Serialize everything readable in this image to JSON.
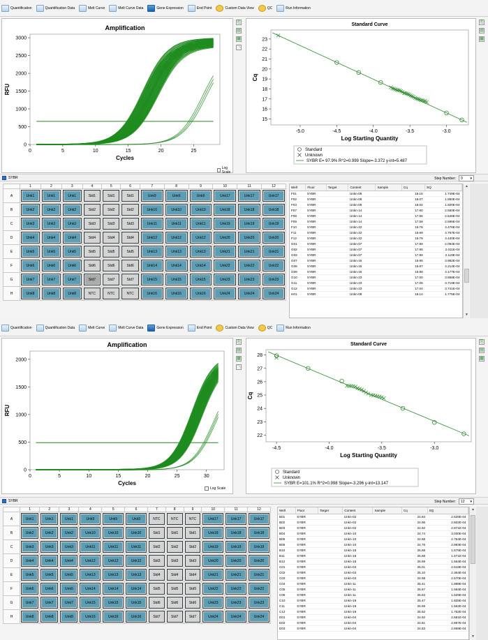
{
  "tabs": [
    {
      "label": "Quantification",
      "icon": "amplification-icon"
    },
    {
      "label": "Quantification Data",
      "icon": "quant-data-icon"
    },
    {
      "label": "Melt Curve",
      "icon": "melt-curve-icon"
    },
    {
      "label": "Melt Curve Data",
      "icon": "melt-data-icon"
    },
    {
      "label": "Gene Expression",
      "icon": "gene-expression-icon"
    },
    {
      "label": "End Point",
      "icon": "end-point-icon"
    },
    {
      "label": "Custom Data View",
      "icon": "custom-view-icon"
    },
    {
      "label": "QC",
      "icon": "qc-icon"
    },
    {
      "label": "Run Information",
      "icon": "run-info-icon"
    }
  ],
  "log_scale_label": "Log Scale",
  "fluor_label": "SYBR",
  "step_number_label": "Step Number:",
  "legend_labels": {
    "standard": "Standard",
    "unknown": "Unknown"
  },
  "column_headers": [
    "1",
    "2",
    "3",
    "4",
    "5",
    "6",
    "7",
    "8",
    "9",
    "10",
    "11",
    "12"
  ],
  "row_headers": [
    "A",
    "B",
    "C",
    "D",
    "E",
    "F",
    "G",
    "H"
  ],
  "table_headers": [
    "Well",
    "Fluor",
    "Target",
    "Content",
    "Sample",
    "Cq",
    "SQ"
  ],
  "panels": [
    {
      "step_number": "9",
      "plate": [
        [
          "Unk1",
          "Unk1",
          "Unk1",
          "Std1",
          "Std1",
          "Std1",
          "Unk9",
          "Unk9",
          "Unk9",
          "Unk17",
          "Unk17",
          "Unk17"
        ],
        [
          "Unk2",
          "Unk2",
          "Unk2",
          "Std2",
          "Std2",
          "Std2",
          "Unk10",
          "Unk10",
          "Unk10",
          "Unk18",
          "Unk18",
          "Unk18"
        ],
        [
          "Unk3",
          "Unk3",
          "Unk3",
          "Std3",
          "Std3",
          "Std3",
          "Unk11",
          "Unk11",
          "Unk11",
          "Unk19",
          "Unk19",
          "Unk19"
        ],
        [
          "Unk4",
          "Unk4",
          "Unk4",
          "Std4",
          "Std4",
          "Std4",
          "Unk12",
          "Unk12",
          "Unk12",
          "Unk20",
          "Unk20",
          "Unk20"
        ],
        [
          "Unk5",
          "Unk5",
          "Unk5",
          "Std5",
          "Std5",
          "Std5",
          "Unk13",
          "Unk13",
          "Unk13",
          "Unk21",
          "Unk21",
          "Unk21"
        ],
        [
          "Unk6",
          "Unk6",
          "Unk6",
          "Std6",
          "Std6",
          "Std6",
          "Unk14",
          "Unk14",
          "Unk14",
          "Unk22",
          "Unk22",
          "Unk22"
        ],
        [
          "Unk7",
          "Unk7",
          "Unk7",
          "Std7",
          "Std7",
          "Std7",
          "Unk15",
          "Unk15",
          "Unk15",
          "Unk23",
          "Unk23",
          "Unk23"
        ],
        [
          "Unk8",
          "Unk8",
          "Unk8",
          "NTC",
          "NTC",
          "NTC",
          "Unk16",
          "Unk16",
          "Unk16",
          "Unk24",
          "Unk24",
          "Unk24"
        ]
      ],
      "selected_well": "G4",
      "rows": [
        [
          "F01",
          "SYBR",
          "",
          "Unkn-06",
          "",
          "18.16",
          "1.749E-04"
        ],
        [
          "F02",
          "SYBR",
          "",
          "Unkn-06",
          "",
          "18.07",
          "1.850E-04"
        ],
        [
          "F03",
          "SYBR",
          "",
          "Unkn-06",
          "",
          "18.02",
          "1.920E-04"
        ],
        [
          "F07",
          "SYBR",
          "",
          "Unkn-14",
          "",
          "17.60",
          "2.560E-04"
        ],
        [
          "F08",
          "SYBR",
          "",
          "Unkn-14",
          "",
          "17.55",
          "2.646E-04"
        ],
        [
          "F09",
          "SYBR",
          "",
          "Unkn-14",
          "",
          "17.58",
          "2.595E-04"
        ],
        [
          "F10",
          "SYBR",
          "",
          "Unkn-22",
          "",
          "16.78",
          "4.476E-04"
        ],
        [
          "F11",
          "SYBR",
          "",
          "Unkn-22",
          "",
          "16.69",
          "4.767E-04"
        ],
        [
          "F12",
          "SYBR",
          "",
          "Unkn-22",
          "",
          "16.79",
          "4.440E-04"
        ],
        [
          "G01",
          "SYBR",
          "",
          "Unkn-07",
          "",
          "17.89",
          "2.094E-04"
        ],
        [
          "G02",
          "SYBR",
          "",
          "Unkn-07",
          "",
          "17.95",
          "2.011E-04"
        ],
        [
          "G03",
          "SYBR",
          "",
          "Unkn-07",
          "",
          "17.89",
          "2.119E-04"
        ],
        [
          "G07",
          "SYBR",
          "",
          "Unkn-15",
          "",
          "16.95",
          "3.982E-04"
        ],
        [
          "G08",
          "SYBR",
          "",
          "Unkn-15",
          "",
          "16.87",
          "4.214E-04"
        ],
        [
          "G09",
          "SYBR",
          "",
          "Unkn-15",
          "",
          "16.88",
          "4.177E-04"
        ],
        [
          "G10",
          "SYBR",
          "",
          "Unkn-23",
          "",
          "17.00",
          "3.858E-04"
        ],
        [
          "G11",
          "SYBR",
          "",
          "Unkn-23",
          "",
          "17.05",
          "3.719E-04"
        ],
        [
          "G12",
          "SYBR",
          "",
          "Unkn-23",
          "",
          "17.04",
          "3.741E-04"
        ],
        [
          "H01",
          "SYBR",
          "",
          "Unkn-08",
          "",
          "18.14",
          "1.775E-04"
        ]
      ],
      "legend_stats": "SYBR    E= 97.9% R^2=0.999 Slope=-3.372 y-int=5.487"
    },
    {
      "step_number": "12",
      "plate": [
        [
          "Unk1",
          "Unk1",
          "Unk1",
          "Unk9",
          "Unk9",
          "Unk9",
          "NTC",
          "NTC",
          "NTC",
          "Unk17",
          "Unk17",
          "Unk17"
        ],
        [
          "Unk2",
          "Unk2",
          "Unk2",
          "Unk10",
          "Unk10",
          "Unk10",
          "Std1",
          "Std1",
          "Std1",
          "Unk18",
          "Unk18",
          "Unk18"
        ],
        [
          "Unk3",
          "Unk3",
          "Unk3",
          "Unk11",
          "Unk11",
          "Unk11",
          "Std2",
          "Std2",
          "Std2",
          "Unk19",
          "Unk19",
          "Unk19"
        ],
        [
          "Unk4",
          "Unk4",
          "Unk4",
          "Unk12",
          "Unk12",
          "Unk12",
          "Std3",
          "Std3",
          "Std3",
          "Unk20",
          "Unk20",
          "Unk20"
        ],
        [
          "Unk5",
          "Unk5",
          "Unk5",
          "Unk13",
          "Unk13",
          "Unk13",
          "Std4",
          "Std4",
          "Std4",
          "Unk21",
          "Unk21",
          "Unk21"
        ],
        [
          "Unk6",
          "Unk6",
          "Unk6",
          "Unk14",
          "Unk14",
          "Unk14",
          "Std5",
          "Std5",
          "Std5",
          "Unk22",
          "Unk22",
          "Unk22"
        ],
        [
          "Unk7",
          "Unk7",
          "Unk7",
          "Unk15",
          "Unk15",
          "Unk15",
          "Std6",
          "Std6",
          "Std6",
          "Unk23",
          "Unk23",
          "Unk23"
        ],
        [
          "Unk8",
          "Unk8",
          "Unk8",
          "Unk16",
          "Unk16",
          "Unk16",
          "Std7",
          "Std7",
          "Std7",
          "Unk24",
          "Unk24",
          "Unk24"
        ]
      ],
      "selected_well": "",
      "rows": [
        [
          "B01",
          "SYBR",
          "",
          "Unkn-02",
          "",
          "24.84",
          "2.526E-04"
        ],
        [
          "B02",
          "SYBR",
          "",
          "Unkn-02",
          "",
          "24.96",
          "2.602E-04"
        ],
        [
          "B03",
          "SYBR",
          "",
          "Unkn-02",
          "",
          "24.92",
          "2.871E-04"
        ],
        [
          "B04",
          "SYBR",
          "",
          "Unkn-10",
          "",
          "24.74",
          "3.030E-04"
        ],
        [
          "B05",
          "SYBR",
          "",
          "Unkn-10",
          "",
          "24.88",
          "2.754E-04"
        ],
        [
          "B06",
          "SYBR",
          "",
          "Unkn-10",
          "",
          "24.76",
          "2.993E-04"
        ],
        [
          "B10",
          "SYBR",
          "",
          "Unkn-18",
          "",
          "25.68",
          "1.575E-04"
        ],
        [
          "B11",
          "SYBR",
          "",
          "Unkn-18",
          "",
          "25.68",
          "1.571E-04"
        ],
        [
          "B12",
          "SYBR",
          "",
          "Unkn-18",
          "",
          "25.69",
          "1.564E-04"
        ],
        [
          "C01",
          "SYBR",
          "",
          "Unkn-03",
          "",
          "25.01",
          "2.518E-04"
        ],
        [
          "C02",
          "SYBR",
          "",
          "Unkn-03",
          "",
          "25.10",
          "2.364E-04"
        ],
        [
          "C03",
          "SYBR",
          "",
          "Unkn-03",
          "",
          "24.98",
          "2.570E-04"
        ],
        [
          "C04",
          "SYBR",
          "",
          "Unkn-11",
          "",
          "25.41",
          "1.898E-04"
        ],
        [
          "C05",
          "SYBR",
          "",
          "Unkn-11",
          "",
          "25.67",
          "1.584E-04"
        ],
        [
          "C06",
          "SYBR",
          "",
          "Unkn-11",
          "",
          "25.63",
          "1.629E-04"
        ],
        [
          "C10",
          "SYBR",
          "",
          "Unkn-19",
          "",
          "25.47",
          "1.825E-04"
        ],
        [
          "C11",
          "SYBR",
          "",
          "Unkn-19",
          "",
          "25.69",
          "1.562E-04"
        ],
        [
          "C12",
          "SYBR",
          "",
          "Unkn-19",
          "",
          "25.52",
          "1.762E-04"
        ],
        [
          "D01",
          "SYBR",
          "",
          "Unkn-04",
          "",
          "24.92",
          "2.681E-04"
        ],
        [
          "D02",
          "SYBR",
          "",
          "Unkn-04",
          "",
          "24.81",
          "2.897E-04"
        ],
        [
          "D03",
          "SYBR",
          "",
          "Unkn-04",
          "",
          "24.83",
          "2.859E-04"
        ]
      ],
      "legend_stats": "SYBR    E=101.1% R^2=0.998 Slope=-3.296 y-int=13.147"
    }
  ],
  "chart_data": [
    {
      "type": "line",
      "title": "Amplification",
      "xlabel": "Cycles",
      "ylabel": "RFU",
      "xlim": [
        0,
        29
      ],
      "ylim": [
        0,
        3100
      ],
      "xticks": [
        0,
        5,
        10,
        15,
        20,
        25
      ],
      "yticks": [
        0,
        500,
        1000,
        1500,
        2000,
        2500,
        3000
      ],
      "threshold": 650,
      "color": "#1e8c1e",
      "series_groups": [
        {
          "count": 72,
          "midpoint_range": [
            17.2,
            19.6
          ],
          "plateau_range": [
            2750,
            3000
          ],
          "slope": 0.52
        },
        {
          "count": 3,
          "midpoint_range": [
            26.3,
            26.8
          ],
          "plateau_range": [
            2600,
            2700
          ],
          "slope": 0.55
        }
      ]
    },
    {
      "type": "scatter",
      "title": "Standard Curve",
      "xlabel": "Log Starting Quantity",
      "ylabel": "Cq",
      "xlim": [
        -5.4,
        -2.7
      ],
      "ylim": [
        14.4,
        23.9
      ],
      "xticks": [
        -5.0,
        -4.5,
        -4.0,
        -3.5,
        -3.0
      ],
      "yticks": [
        15,
        16,
        17,
        18,
        19,
        20,
        21,
        22,
        23
      ],
      "fit": {
        "slope": -3.372,
        "intercept": 5.487
      },
      "standard": {
        "x": [
          -4.5,
          -4.2,
          -3.9,
          -3.0,
          -2.79
        ],
        "y": [
          20.65,
          19.65,
          18.65,
          15.6,
          14.9
        ]
      },
      "unknown": {
        "x": [
          -5.3,
          -3.76,
          -3.74,
          -3.72,
          -3.7,
          -3.68,
          -3.66,
          -3.64,
          -3.62,
          -3.6,
          -3.58,
          -3.57,
          -3.55,
          -3.53,
          -3.51,
          -3.49,
          -3.47,
          -3.45,
          -3.43,
          -3.41,
          -3.39,
          -3.37,
          -3.35,
          -3.33,
          -3.31,
          -3.29,
          -3.27
        ],
        "y": [
          23.35,
          18.16,
          18.07,
          18.02,
          17.95,
          17.89,
          17.89,
          17.85,
          17.78,
          17.7,
          17.6,
          17.58,
          17.55,
          17.5,
          17.45,
          17.35,
          17.27,
          17.2,
          17.1,
          17.04,
          17.0,
          16.95,
          16.88,
          16.87,
          16.79,
          16.78,
          16.69
        ]
      }
    },
    {
      "type": "line",
      "title": "Amplification",
      "xlabel": "Cycles",
      "ylabel": "RFU",
      "xlim": [
        0,
        33
      ],
      "ylim": [
        0,
        2150
      ],
      "xticks": [
        0,
        5,
        10,
        15,
        20,
        25,
        30
      ],
      "yticks": [
        0,
        500,
        1000,
        1500,
        2000
      ],
      "threshold": 490,
      "color": "#1e8c1e",
      "series_groups": [
        {
          "count": 72,
          "midpoint_range": [
            27.5,
            29.3
          ],
          "plateau_range": [
            1950,
            2100
          ],
          "slope": 0.55
        },
        {
          "count": 3,
          "midpoint_range": [
            31.2,
            31.6
          ],
          "plateau_range": [
            1700,
            1750
          ],
          "slope": 0.55
        }
      ]
    },
    {
      "type": "scatter",
      "title": "Standard Curve",
      "xlabel": "Log Starting Quantity",
      "ylabel": "Cq",
      "xlim": [
        -4.6,
        -2.65
      ],
      "ylim": [
        21.5,
        28.4
      ],
      "xticks": [
        -4.5,
        -4.0,
        -3.5,
        -3.0
      ],
      "yticks": [
        22,
        23,
        24,
        25,
        26,
        27,
        28
      ],
      "fit": {
        "slope": -3.296,
        "intercept": 13.147
      },
      "standard": {
        "x": [
          -4.5,
          -4.2,
          -3.88,
          -3.3,
          -3.0,
          -2.72
        ],
        "y": [
          27.95,
          27.0,
          26.05,
          24.0,
          22.95,
          22.1
        ]
      },
      "unknown": {
        "x": [
          -4.5,
          -3.83,
          -3.81,
          -3.79,
          -3.77,
          -3.75,
          -3.73,
          -3.71,
          -3.69,
          -3.67,
          -3.65,
          -3.63,
          -3.6,
          -3.58,
          -3.56,
          -3.54,
          -3.52,
          -3.5,
          -3.48
        ],
        "y": [
          27.8,
          25.69,
          25.68,
          25.68,
          25.67,
          25.63,
          25.52,
          25.47,
          25.41,
          25.3,
          25.2,
          25.1,
          25.01,
          24.98,
          24.96,
          24.92,
          24.88,
          24.84,
          24.76
        ]
      }
    }
  ]
}
